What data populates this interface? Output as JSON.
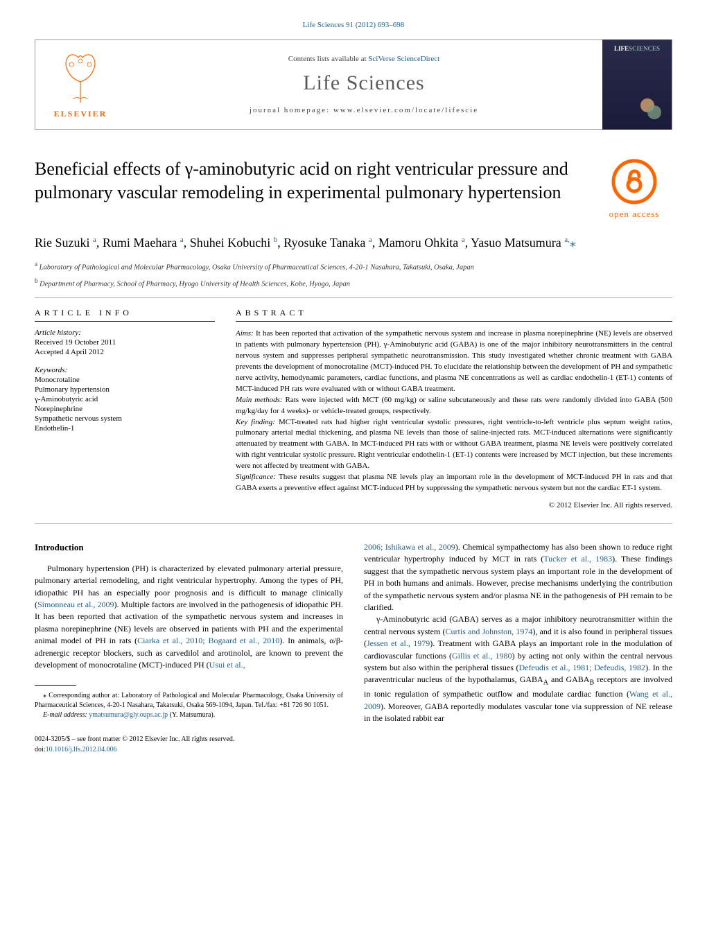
{
  "journal_ref": "Life Sciences 91 (2012) 693–698",
  "header": {
    "contents_prefix": "Contents lists available at ",
    "contents_link": "SciVerse ScienceDirect",
    "journal_name": "Life Sciences",
    "homepage_prefix": "journal homepage: ",
    "homepage": "www.elsevier.com/locate/lifescie",
    "elsevier_label": "ELSEVIER",
    "cover_label": "LIFE"
  },
  "oa_label": "open access",
  "title": "Beneficial effects of γ-aminobutyric acid on right ventricular pressure and pulmonary vascular remodeling in experimental pulmonary hypertension",
  "authors_html": "Rie Suzuki <sup>a</sup>, Rumi Maehara <sup>a</sup>, Shuhei Kobuchi <sup>b</sup>, Ryosuke Tanaka <sup>a</sup>, Mamoru Ohkita <sup>a</sup>, Yasuo Matsumura <sup>a,</sup><span class='asterisk'>⁎</span>",
  "affiliations": {
    "a": "a Laboratory of Pathological and Molecular Pharmacology, Osaka University of Pharmaceutical Sciences, 4-20-1 Nasahara, Takatsuki, Osaka, Japan",
    "b": "b Department of Pharmacy, School of Pharmacy, Hyogo University of Health Sciences, Kobe, Hyogo, Japan"
  },
  "article_info": {
    "header": "ARTICLE INFO",
    "history_label": "Article history:",
    "received": "Received 19 October 2011",
    "accepted": "Accepted 4 April 2012",
    "keywords_label": "Keywords:",
    "keywords": [
      "Monocrotaline",
      "Pulmonary hypertension",
      "γ-Aminobutyric acid",
      "Norepinephrine",
      "Sympathetic nervous system",
      "Endothelin-1"
    ]
  },
  "abstract": {
    "header": "ABSTRACT",
    "aims_label": "Aims:",
    "aims": "It has been reported that activation of the sympathetic nervous system and increase in plasma norepinephrine (NE) levels are observed in patients with pulmonary hypertension (PH). γ-Aminobutyric acid (GABA) is one of the major inhibitory neurotransmitters in the central nervous system and suppresses peripheral sympathetic neurotransmission. This study investigated whether chronic treatment with GABA prevents the development of monocrotaline (MCT)-induced PH. To elucidate the relationship between the development of PH and sympathetic nerve activity, hemodynamic parameters, cardiac functions, and plasma NE concentrations as well as cardiac endothelin-1 (ET-1) contents of MCT-induced PH rats were evaluated with or without GABA treatment.",
    "methods_label": "Main methods:",
    "methods": "Rats were injected with MCT (60 mg/kg) or saline subcutaneously and these rats were randomly divided into GABA (500 mg/kg/day for 4 weeks)- or vehicle-treated groups, respectively.",
    "finding_label": "Key finding:",
    "finding": "MCT-treated rats had higher right ventricular systolic pressures, right ventricle-to-left ventricle plus septum weight ratios, pulmonary arterial medial thickening, and plasma NE levels than those of saline-injected rats. MCT-induced alternations were significantly attenuated by treatment with GABA. In MCT-induced PH rats with or without GABA treatment, plasma NE levels were positively correlated with right ventricular systolic pressure. Right ventricular endothelin-1 (ET-1) contents were increased by MCT injection, but these increments were not affected by treatment with GABA.",
    "significance_label": "Significance:",
    "significance": "These results suggest that plasma NE levels play an important role in the development of MCT-induced PH in rats and that GABA exerts a preventive effect against MCT-induced PH by suppressing the sympathetic nervous system but not the cardiac ET-1 system.",
    "copyright": "© 2012 Elsevier Inc. All rights reserved."
  },
  "intro_heading": "Introduction",
  "intro_col1": "Pulmonary hypertension (PH) is characterized by elevated pulmonary arterial pressure, pulmonary arterial remodeling, and right ventricular hypertrophy. Among the types of PH, idiopathic PH has an especially poor prognosis and is difficult to manage clinically (<span class='ref-link'>Simonneau et al., 2009</span>). Multiple factors are involved in the pathogenesis of idiopathic PH. It has been reported that activation of the sympathetic nervous system and increases in plasma norepinephrine (NE) levels are observed in patients with PH and the experimental animal model of PH in rats (<span class='ref-link'>Ciarka et al., 2010; Bogaard et al., 2010</span>). In animals, α/β-adrenergic receptor blockers, such as carvedilol and arotinolol, are known to prevent the development of monocrotaline (MCT)-induced PH (<span class='ref-link'>Usui et al.,</span>",
  "intro_col2_p1": "<span class='ref-link'>2006; Ishikawa et al., 2009</span>). Chemical sympathectomy has also been shown to reduce right ventricular hypertrophy induced by MCT in rats (<span class='ref-link'>Tucker et al., 1983</span>). These findings suggest that the sympathetic nervous system plays an important role in the development of PH in both humans and animals. However, precise mechanisms underlying the contribution of the sympathetic nervous system and/or plasma NE in the pathogenesis of PH remain to be clarified.",
  "intro_col2_p2": "γ-Aminobutyric acid (GABA) serves as a major inhibitory neurotransmitter within the central nervous system (<span class='ref-link'>Curtis and Johnston, 1974</span>), and it is also found in peripheral tissues (<span class='ref-link'>Jessen et al., 1979</span>). Treatment with GABA plays an important role in the modulation of cardiovascular functions (<span class='ref-link'>Gillis et al., 1980</span>) by acting not only within the central nervous system but also within the peripheral tissues (<span class='ref-link'>Defeudis et al., 1981; Defeudis, 1982</span>). In the paraventricular nucleus of the hypothalamus, GABA<sub>A</sub> and GABA<sub>B</sub> receptors are involved in tonic regulation of sympathetic outflow and modulate cardiac function (<span class='ref-link'>Wang et al., 2009</span>). Moreover, GABA reportedly modulates vascular tone via suppression of NE release in the isolated rabbit ear",
  "footnotes": {
    "corresponding": "⁎ Corresponding author at: Laboratory of Pathological and Molecular Pharmacology, Osaka University of Pharmaceutical Sciences, 4-20-1 Nasahara, Takatsuki, Osaka 569-1094, Japan. Tel./fax: +81 726 90 1051.",
    "email_label": "E-mail address:",
    "email": "ymatsumura@gly.oups.ac.jp",
    "email_suffix": "(Y. Matsumura)."
  },
  "footer": {
    "issn": "0024-3205/$ – see front matter © 2012 Elsevier Inc. All rights reserved.",
    "doi_prefix": "doi:",
    "doi": "10.1016/j.lfs.2012.04.006"
  },
  "colors": {
    "link": "#1e6091",
    "orange": "#ff6600",
    "journal_gray": "#5a5a5a"
  }
}
